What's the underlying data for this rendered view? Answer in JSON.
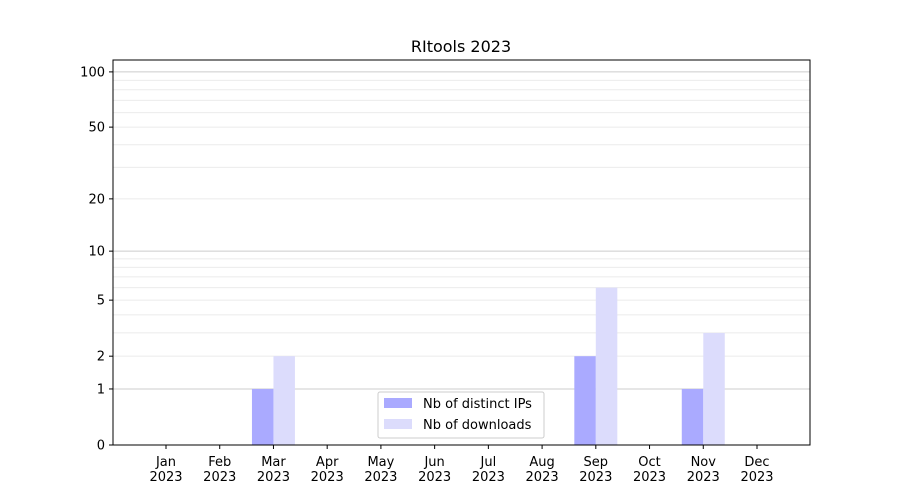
{
  "chart_data": {
    "type": "bar",
    "title": "RItools 2023",
    "xlabel": "",
    "ylabel": "",
    "yscale": "log(1+y)",
    "ylim": [
      0,
      116
    ],
    "yticks": [
      0,
      1,
      2,
      5,
      10,
      20,
      50,
      100
    ],
    "ytick_labels": [
      "0",
      "1",
      "2",
      "5",
      "10",
      "20",
      "50",
      "100"
    ],
    "grid": true,
    "legend_position": "bottom-center",
    "categories": [
      "Jan\n2023",
      "Feb\n2023",
      "Mar\n2023",
      "Apr\n2023",
      "May\n2023",
      "Jun\n2023",
      "Jul\n2023",
      "Aug\n2023",
      "Sep\n2023",
      "Oct\n2023",
      "Nov\n2023",
      "Dec\n2023"
    ],
    "series": [
      {
        "name": "Nb of distinct IPs",
        "color": "#aaaaff",
        "values": [
          0,
          0,
          1,
          0,
          0,
          0,
          0,
          0,
          2,
          0,
          1,
          0
        ]
      },
      {
        "name": "Nb of downloads",
        "color": "#dcdcfc",
        "values": [
          0,
          0,
          2,
          0,
          0,
          0,
          0,
          0,
          6,
          0,
          3,
          0
        ]
      }
    ]
  }
}
